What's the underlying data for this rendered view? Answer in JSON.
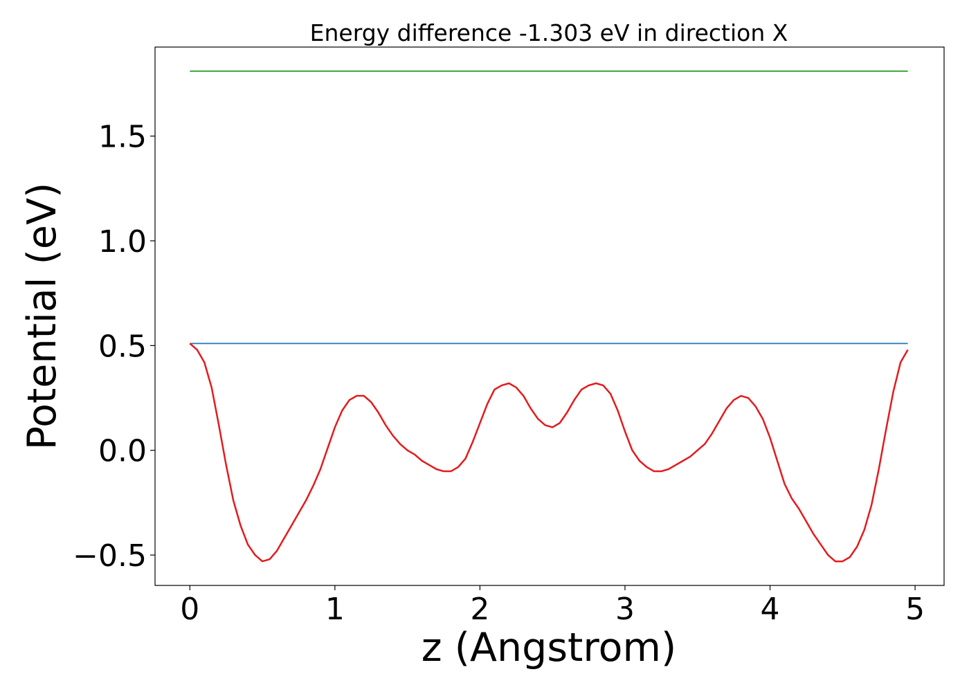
{
  "chart_data": {
    "type": "line",
    "title": "Energy difference -1.303 eV in direction X",
    "xlabel": "z (Angstrom)",
    "ylabel": "Potential (eV)",
    "xlim": [
      -0.24,
      5.2
    ],
    "ylim": [
      -0.645,
      1.925
    ],
    "xticks": [
      0,
      1,
      2,
      3,
      4,
      5
    ],
    "xtick_labels": [
      "0",
      "1",
      "2",
      "3",
      "4",
      "5"
    ],
    "yticks": [
      -0.5,
      0.0,
      0.5,
      1.0,
      1.5
    ],
    "ytick_labels": [
      "−0.5",
      "0.0",
      "0.5",
      "1.0",
      "1.5"
    ],
    "grid": false,
    "legend": "none",
    "series": [
      {
        "color": "#2ca02c",
        "style": "horizontal",
        "x": [
          0,
          4.95
        ],
        "y": [
          1.81,
          1.81
        ]
      },
      {
        "color": "#1f77b4",
        "style": "horizontal",
        "x": [
          0,
          4.95
        ],
        "y": [
          0.51,
          0.51
        ]
      },
      {
        "color": "#e41a1c",
        "style": "line",
        "x": [
          0.0,
          0.05,
          0.1,
          0.15,
          0.2,
          0.25,
          0.3,
          0.35,
          0.4,
          0.45,
          0.5,
          0.55,
          0.6,
          0.65,
          0.7,
          0.75,
          0.8,
          0.85,
          0.9,
          0.95,
          1.0,
          1.05,
          1.1,
          1.15,
          1.2,
          1.25,
          1.3,
          1.35,
          1.4,
          1.45,
          1.5,
          1.55,
          1.6,
          1.65,
          1.7,
          1.75,
          1.8,
          1.85,
          1.9,
          1.95,
          2.0,
          2.05,
          2.1,
          2.15,
          2.2,
          2.25,
          2.3,
          2.35,
          2.4,
          2.45,
          2.5,
          2.55,
          2.6,
          2.65,
          2.7,
          2.75,
          2.8,
          2.85,
          2.9,
          2.95,
          3.0,
          3.05,
          3.1,
          3.15,
          3.2,
          3.25,
          3.3,
          3.35,
          3.4,
          3.45,
          3.5,
          3.55,
          3.6,
          3.65,
          3.7,
          3.75,
          3.8,
          3.85,
          3.9,
          3.95,
          4.0,
          4.05,
          4.1,
          4.15,
          4.2,
          4.25,
          4.3,
          4.35,
          4.4,
          4.45,
          4.5,
          4.55,
          4.6,
          4.65,
          4.7,
          4.75,
          4.8,
          4.85,
          4.9,
          4.95
        ],
        "y": [
          0.51,
          0.48,
          0.42,
          0.3,
          0.12,
          -0.07,
          -0.24,
          -0.36,
          -0.45,
          -0.5,
          -0.53,
          -0.52,
          -0.48,
          -0.42,
          -0.36,
          -0.3,
          -0.24,
          -0.17,
          -0.09,
          0.01,
          0.11,
          0.19,
          0.24,
          0.26,
          0.26,
          0.23,
          0.18,
          0.12,
          0.07,
          0.03,
          0.0,
          -0.02,
          -0.05,
          -0.07,
          -0.09,
          -0.1,
          -0.1,
          -0.08,
          -0.04,
          0.04,
          0.13,
          0.22,
          0.29,
          0.31,
          0.32,
          0.3,
          0.26,
          0.2,
          0.15,
          0.12,
          0.11,
          0.13,
          0.18,
          0.24,
          0.29,
          0.31,
          0.32,
          0.31,
          0.27,
          0.19,
          0.09,
          0.0,
          -0.05,
          -0.08,
          -0.1,
          -0.1,
          -0.09,
          -0.07,
          -0.05,
          -0.03,
          0.0,
          0.03,
          0.08,
          0.14,
          0.2,
          0.24,
          0.26,
          0.25,
          0.21,
          0.15,
          0.06,
          -0.05,
          -0.16,
          -0.23,
          -0.28,
          -0.34,
          -0.4,
          -0.45,
          -0.5,
          -0.53,
          -0.53,
          -0.51,
          -0.46,
          -0.38,
          -0.26,
          -0.09,
          0.1,
          0.28,
          0.42,
          0.48
        ]
      }
    ]
  }
}
